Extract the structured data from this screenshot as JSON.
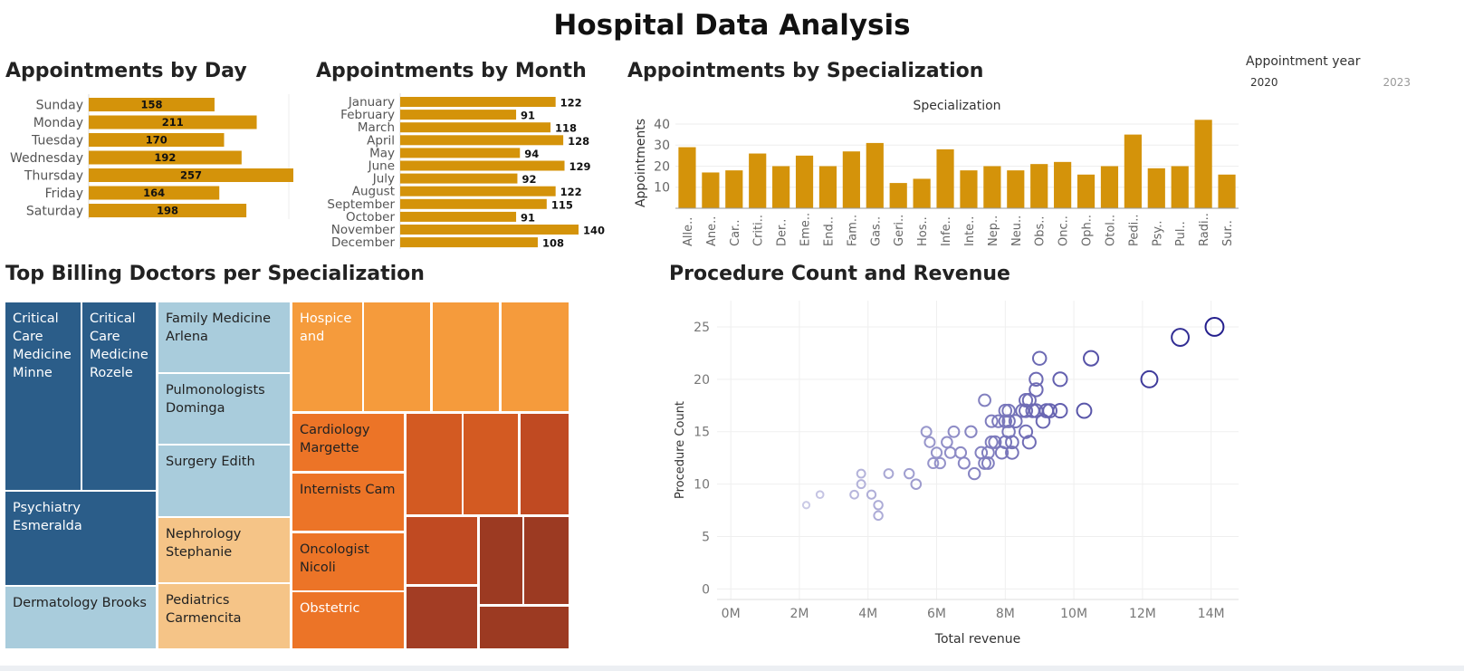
{
  "title": "Hospital Data Analysis",
  "filter": {
    "label": "Appointment year",
    "min": "2020",
    "max": "2023"
  },
  "sections": {
    "by_day": "Appointments by Day",
    "by_month": "Appointments by Month",
    "by_spec": "Appointments by Specialization",
    "treemap": "Top Billing Doctors per Specialization",
    "scatter": "Procedure Count and Revenue"
  },
  "chart_data": [
    {
      "type": "bar",
      "orientation": "horizontal",
      "title": "Appointments by Day",
      "categories": [
        "Sunday",
        "Monday",
        "Tuesday",
        "Wednesday",
        "Thursday",
        "Friday",
        "Saturday"
      ],
      "values": [
        158,
        211,
        170,
        192,
        257,
        164,
        198
      ],
      "color": "#D4930A"
    },
    {
      "type": "bar",
      "orientation": "horizontal",
      "title": "Appointments by Month",
      "categories": [
        "January",
        "February",
        "March",
        "April",
        "May",
        "June",
        "July",
        "August",
        "September",
        "October",
        "November",
        "December"
      ],
      "values": [
        122,
        91,
        118,
        128,
        94,
        129,
        92,
        122,
        115,
        91,
        140,
        108
      ],
      "color": "#D4930A"
    },
    {
      "type": "bar",
      "title": "Appointments by Specialization",
      "subtitle": "Specialization",
      "ylabel": "Appointments",
      "yticks": [
        10,
        20,
        30,
        40
      ],
      "categories": [
        "Alle..",
        "Ane..",
        "Car..",
        "Criti..",
        "Der..",
        "Eme..",
        "End..",
        "Fam..",
        "Gas..",
        "Geri..",
        "Hos..",
        "Infe..",
        "Inte..",
        "Nep..",
        "Neu..",
        "Obs..",
        "Onc..",
        "Oph..",
        "Otol..",
        "Pedi..",
        "Psy..",
        "Pul..",
        "Radi..",
        "Sur.."
      ],
      "values": [
        29,
        17,
        18,
        26,
        20,
        25,
        20,
        27,
        31,
        12,
        14,
        28,
        18,
        20,
        18,
        21,
        22,
        16,
        20,
        35,
        19,
        20,
        42,
        16
      ],
      "ylim": [
        0,
        43
      ],
      "color": "#D4930A"
    },
    {
      "type": "treemap",
      "title": "Top Billing Doctors per Specialization",
      "labels": [
        "Critical Care Medicine Minne",
        "Critical Care Medicine Rozele",
        "Psychiatry Esmeralda",
        "Dermatology Brooks",
        "Family Medicine Arlena",
        "Pulmonologists Dominga",
        "Surgery Edith",
        "Nephrology Stephanie",
        "Pediatrics Carmencita",
        "Hospice and",
        "Cardiology Margette",
        "Internists Cam",
        "Oncologist Nicoli",
        "Obstetric"
      ]
    },
    {
      "type": "scatter",
      "title": "Procedure Count and Revenue",
      "xlabel": "Total revenue",
      "ylabel": "Procedure Count",
      "xticks": [
        "0M",
        "2M",
        "4M",
        "6M",
        "8M",
        "10M",
        "12M",
        "14M"
      ],
      "yticks": [
        0,
        5,
        10,
        15,
        20,
        25
      ],
      "xlim": [
        -0.4,
        14.8
      ],
      "ylim": [
        -1,
        27.5
      ],
      "points": [
        [
          2.2,
          8
        ],
        [
          2.6,
          9
        ],
        [
          3.6,
          9
        ],
        [
          3.8,
          11
        ],
        [
          3.8,
          10
        ],
        [
          4.1,
          9
        ],
        [
          4.3,
          8
        ],
        [
          4.3,
          7
        ],
        [
          4.6,
          11
        ],
        [
          5.2,
          11
        ],
        [
          5.4,
          10
        ],
        [
          5.7,
          15
        ],
        [
          5.8,
          14
        ],
        [
          5.9,
          12
        ],
        [
          6.0,
          13
        ],
        [
          6.1,
          12
        ],
        [
          6.3,
          14
        ],
        [
          6.4,
          13
        ],
        [
          6.5,
          15
        ],
        [
          6.7,
          13
        ],
        [
          6.8,
          12
        ],
        [
          7.0,
          15
        ],
        [
          7.1,
          11
        ],
        [
          7.3,
          13
        ],
        [
          7.4,
          12
        ],
        [
          7.4,
          18
        ],
        [
          7.5,
          12
        ],
        [
          7.5,
          13
        ],
        [
          7.6,
          14
        ],
        [
          7.6,
          16
        ],
        [
          7.7,
          14
        ],
        [
          7.8,
          16
        ],
        [
          7.9,
          13
        ],
        [
          8.0,
          14
        ],
        [
          8.0,
          16
        ],
        [
          8.0,
          17
        ],
        [
          8.1,
          17
        ],
        [
          8.1,
          16
        ],
        [
          8.1,
          15
        ],
        [
          8.2,
          13
        ],
        [
          8.2,
          14
        ],
        [
          8.3,
          16
        ],
        [
          8.5,
          17
        ],
        [
          8.6,
          15
        ],
        [
          8.6,
          17
        ],
        [
          8.6,
          18
        ],
        [
          8.7,
          14
        ],
        [
          8.7,
          18
        ],
        [
          8.8,
          17
        ],
        [
          8.9,
          17
        ],
        [
          8.9,
          19
        ],
        [
          8.9,
          20
        ],
        [
          9.0,
          22
        ],
        [
          9.1,
          16
        ],
        [
          9.2,
          17
        ],
        [
          9.3,
          17
        ],
        [
          9.6,
          20
        ],
        [
          9.6,
          17
        ],
        [
          10.3,
          17
        ],
        [
          10.5,
          22
        ],
        [
          12.2,
          20
        ],
        [
          13.1,
          24
        ],
        [
          14.1,
          25
        ]
      ]
    }
  ]
}
